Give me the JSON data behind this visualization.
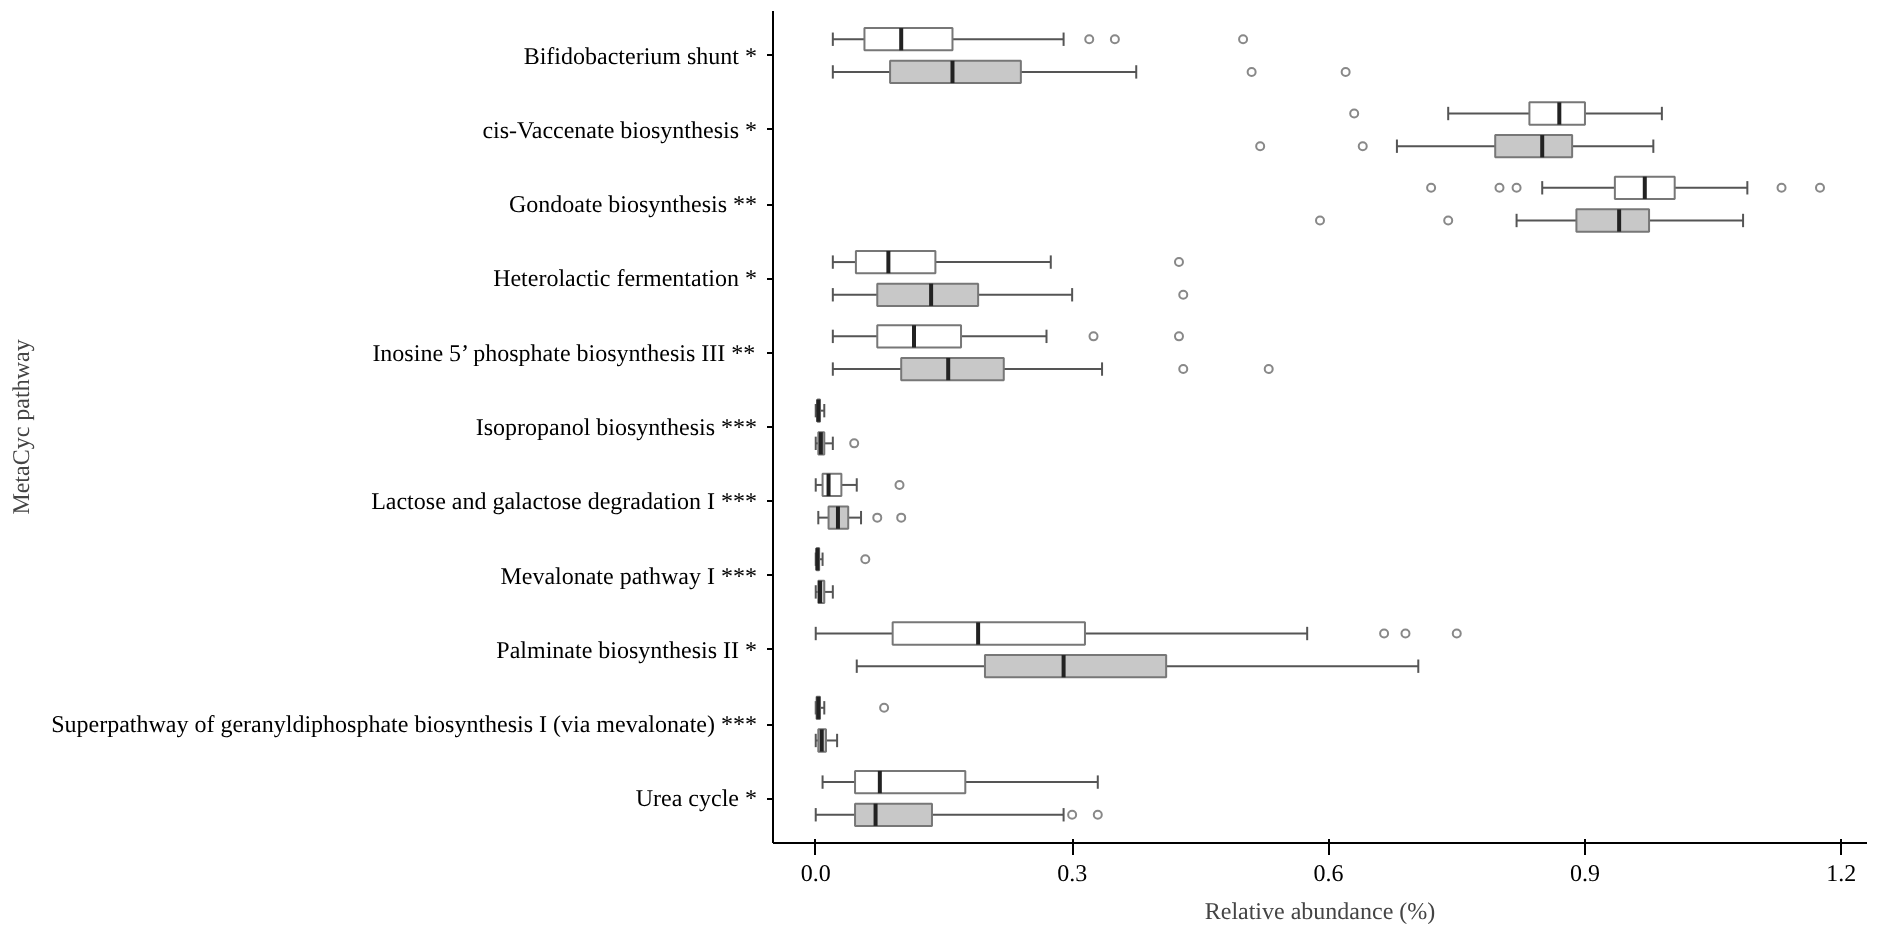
{
  "chart_data": {
    "type": "box",
    "orientation": "horizontal",
    "xlabel": "Relative abundance (%)",
    "ylabel": "MetaCyc pathway",
    "categories": [
      "Bifidobacterium shunt *",
      "cis-Vaccenate biosynthesis *",
      "Gondoate biosynthesis **",
      "Heterolactic fermentation *",
      "Inosine 5’ phosphate biosynthesis III **",
      "Isopropanol biosynthesis ***",
      "Lactose and galactose degradation I ***",
      "Mevalonate pathway I ***",
      "Palminate biosynthesis II *",
      "Superpathway of geranyldiphosphate biosynthesis I (via mevalonate) ***",
      "Urea cycle *"
    ],
    "xlim": [
      -0.05,
      1.23
    ],
    "xticks": [
      {
        "value": 0,
        "label": "0.0"
      },
      0.3,
      0.6,
      0.9,
      1.2
    ],
    "series": [
      {
        "color": "#ffffff",
        "boxes": [
          {
            "low": 0.02,
            "q1": 0.057,
            "median": 0.1,
            "q3": 0.16,
            "high": 0.29,
            "outliers": [
              0.32,
              0.35,
              0.5
            ]
          },
          {
            "low": 0.74,
            "q1": 0.835,
            "median": 0.87,
            "q3": 0.9,
            "high": 0.99,
            "outliers": [
              0.63
            ]
          },
          {
            "low": 0.85,
            "q1": 0.935,
            "median": 0.97,
            "q3": 1.005,
            "high": 1.09,
            "outliers": [
              0.72,
              0.8,
              0.82,
              1.13,
              1.175
            ]
          },
          {
            "low": 0.02,
            "q1": 0.047,
            "median": 0.085,
            "q3": 0.14,
            "high": 0.275,
            "outliers": [
              0.425
            ]
          },
          {
            "low": 0.02,
            "q1": 0.072,
            "median": 0.115,
            "q3": 0.17,
            "high": 0.27,
            "outliers": [
              0.325,
              0.425
            ]
          },
          {
            "low": 0.0,
            "q1": 0.002,
            "median": 0.003,
            "q3": 0.005,
            "high": 0.01
          },
          {
            "low": 0.0,
            "q1": 0.008,
            "median": 0.015,
            "q3": 0.03,
            "high": 0.048,
            "outliers": [
              0.098
            ]
          },
          {
            "low": 0.0,
            "q1": 0.001,
            "median": 0.002,
            "q3": 0.004,
            "high": 0.008,
            "outliers": [
              0.058
            ]
          },
          {
            "low": 0.0,
            "q1": 0.09,
            "median": 0.19,
            "q3": 0.315,
            "high": 0.575,
            "outliers": [
              0.665,
              0.69,
              0.75
            ]
          },
          {
            "low": 0.0,
            "q1": 0.001,
            "median": 0.003,
            "q3": 0.005,
            "high": 0.01,
            "outliers": [
              0.08
            ]
          },
          {
            "low": 0.008,
            "q1": 0.046,
            "median": 0.075,
            "q3": 0.175,
            "high": 0.33
          }
        ]
      },
      {
        "color": "#c8c8c8",
        "boxes": [
          {
            "low": 0.02,
            "q1": 0.087,
            "median": 0.16,
            "q3": 0.24,
            "high": 0.375,
            "outliers": [
              0.51,
              0.62
            ]
          },
          {
            "low": 0.68,
            "q1": 0.795,
            "median": 0.85,
            "q3": 0.885,
            "high": 0.98,
            "outliers": [
              0.52,
              0.64
            ]
          },
          {
            "low": 0.82,
            "q1": 0.89,
            "median": 0.94,
            "q3": 0.975,
            "high": 1.085,
            "outliers": [
              0.59,
              0.74
            ]
          },
          {
            "low": 0.02,
            "q1": 0.072,
            "median": 0.135,
            "q3": 0.19,
            "high": 0.3,
            "outliers": [
              0.43
            ]
          },
          {
            "low": 0.02,
            "q1": 0.1,
            "median": 0.155,
            "q3": 0.22,
            "high": 0.335,
            "outliers": [
              0.43,
              0.53
            ]
          },
          {
            "low": 0.0,
            "q1": 0.003,
            "median": 0.006,
            "q3": 0.01,
            "high": 0.02,
            "outliers": [
              0.045
            ]
          },
          {
            "low": 0.003,
            "q1": 0.015,
            "median": 0.026,
            "q3": 0.038,
            "high": 0.053,
            "outliers": [
              0.072,
              0.1
            ]
          },
          {
            "low": 0.0,
            "q1": 0.003,
            "median": 0.005,
            "q3": 0.01,
            "high": 0.02
          },
          {
            "low": 0.048,
            "q1": 0.198,
            "median": 0.29,
            "q3": 0.41,
            "high": 0.705
          },
          {
            "low": 0.0,
            "q1": 0.003,
            "median": 0.007,
            "q3": 0.012,
            "high": 0.025
          },
          {
            "low": 0.0,
            "q1": 0.046,
            "median": 0.07,
            "q3": 0.136,
            "high": 0.29,
            "outliers": [
              0.3,
              0.33
            ]
          }
        ]
      }
    ]
  }
}
